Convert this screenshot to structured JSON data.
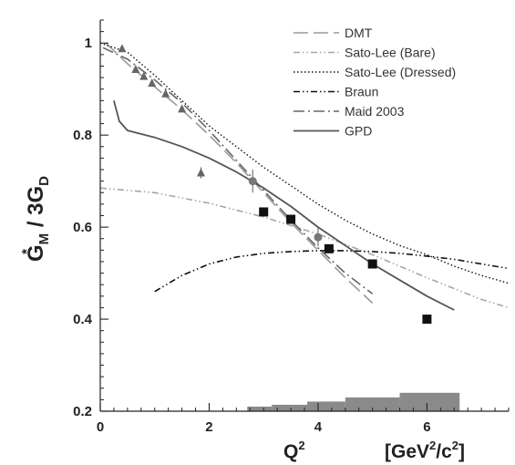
{
  "chart_data": {
    "type": "line",
    "ylabel": {
      "main": "G",
      "sup": "*",
      "sub": "M",
      "rest": " / 3G",
      "sub2": "D"
    },
    "xlabel": {
      "main": "Q",
      "sup": "2"
    },
    "unit_label": {
      "pre": "[GeV",
      "sup1": "2",
      "mid": "/c",
      "sup2": "2",
      "post": "]"
    },
    "xlim": [
      0,
      7.5
    ],
    "ylim": [
      0.2,
      1.05
    ],
    "x_ticks": [
      0,
      2,
      4,
      6
    ],
    "y_ticks": [
      0.2,
      0.4,
      0.6,
      0.8,
      1
    ],
    "x_tick_labels": [
      "0",
      "2",
      "4",
      "6"
    ],
    "y_tick_labels": [
      "0.2",
      "0.4",
      "0.6",
      "0.8",
      "1"
    ],
    "legend_position": "top-right",
    "series": [
      {
        "name": "DMT",
        "style": "longdash",
        "color": "#9a9a9a",
        "x": [
          0.1,
          0.5,
          1.0,
          1.5,
          2.0,
          2.5,
          3.0,
          3.5,
          4.0,
          4.5,
          5.0
        ],
        "y": [
          1.0,
          0.955,
          0.905,
          0.855,
          0.8,
          0.74,
          0.675,
          0.61,
          0.55,
          0.49,
          0.435
        ]
      },
      {
        "name": "Sato-Lee (Bare)",
        "style": "dashdotdot",
        "color": "#a6a6a6",
        "x": [
          0,
          1,
          2,
          3,
          4,
          5,
          6,
          7,
          7.5
        ],
        "y": [
          0.685,
          0.675,
          0.652,
          0.622,
          0.585,
          0.54,
          0.49,
          0.443,
          0.425
        ]
      },
      {
        "name": "Sato-Lee (Dressed)",
        "style": "dotted",
        "color": "#111111",
        "x": [
          0,
          0.5,
          1,
          1.5,
          2,
          2.5,
          3,
          3.5,
          4,
          4.5,
          5,
          5.5,
          6,
          6.5,
          7,
          7.5
        ],
        "y": [
          1.0,
          0.98,
          0.93,
          0.875,
          0.82,
          0.775,
          0.73,
          0.69,
          0.65,
          0.615,
          0.585,
          0.56,
          0.54,
          0.515,
          0.495,
          0.478
        ]
      },
      {
        "name": "Braun",
        "style": "dashdotdot",
        "color": "#111111",
        "x": [
          1.0,
          1.5,
          2.0,
          2.5,
          3.0,
          3.5,
          4.0,
          4.5,
          5.0,
          5.5,
          6.0,
          6.5,
          7.0,
          7.5
        ],
        "y": [
          0.46,
          0.495,
          0.52,
          0.535,
          0.543,
          0.547,
          0.549,
          0.549,
          0.547,
          0.543,
          0.537,
          0.53,
          0.52,
          0.51
        ]
      },
      {
        "name": "Maid 2003",
        "style": "dashdot",
        "color": "#666666",
        "x": [
          0.05,
          0.5,
          1,
          1.5,
          2,
          2.5,
          3,
          3.5,
          4,
          4.5,
          5
        ],
        "y": [
          0.99,
          0.965,
          0.92,
          0.87,
          0.81,
          0.745,
          0.68,
          0.615,
          0.555,
          0.5,
          0.455
        ]
      },
      {
        "name": "GPD",
        "style": "solid",
        "color": "#555555",
        "x": [
          0.25,
          0.35,
          0.5,
          1,
          1.5,
          2,
          2.5,
          3,
          3.5,
          4,
          4.5,
          5,
          5.5,
          6,
          6.5
        ],
        "y": [
          0.875,
          0.83,
          0.81,
          0.795,
          0.775,
          0.75,
          0.72,
          0.685,
          0.645,
          0.6,
          0.56,
          0.52,
          0.485,
          0.45,
          0.42
        ]
      }
    ],
    "points": [
      {
        "marker": "triangle",
        "color": "#666666",
        "x": [
          0.4,
          0.65,
          0.8,
          0.95,
          1.2,
          1.5,
          1.85
        ],
        "y": [
          0.988,
          0.943,
          0.928,
          0.913,
          0.89,
          0.857,
          0.718
        ],
        "yerr": [
          0,
          0,
          0,
          0,
          0,
          0,
          0.012
        ]
      },
      {
        "marker": "circle",
        "color": "#777777",
        "x": [
          2.8,
          4.0
        ],
        "y": [
          0.7,
          0.578
        ],
        "yerr": [
          0.025,
          0.02
        ]
      },
      {
        "marker": "square",
        "color": "#111111",
        "x": [
          3.0,
          3.5,
          4.2,
          5.0,
          6.0
        ],
        "y": [
          0.633,
          0.617,
          0.553,
          0.52,
          0.4
        ],
        "yerr": [
          0,
          0,
          0,
          0,
          0
        ]
      }
    ],
    "systematic_band": {
      "color": "#8a8a8a",
      "bins": [
        [
          2.7,
          3.15,
          0.21
        ],
        [
          3.15,
          3.8,
          0.214
        ],
        [
          3.8,
          4.5,
          0.221
        ],
        [
          4.5,
          5.5,
          0.23
        ],
        [
          5.5,
          6.6,
          0.24
        ]
      ]
    }
  }
}
